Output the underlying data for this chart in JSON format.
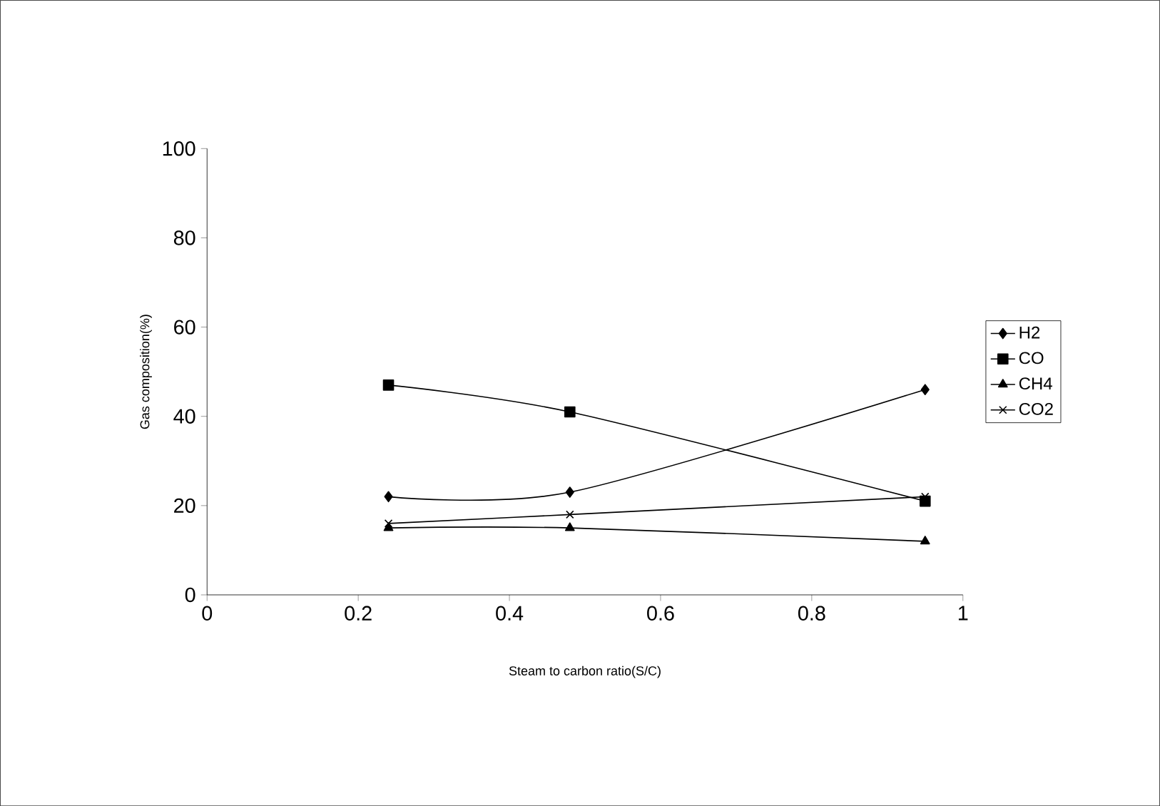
{
  "chart_data": {
    "type": "line",
    "xlabel": "Steam to carbon ratio(S/C)",
    "ylabel": "Gas composition(%)",
    "x": [
      0.24,
      0.48,
      0.95
    ],
    "series": [
      {
        "name": "H2",
        "color": "#000000",
        "marker": "diamond",
        "values": [
          22,
          23,
          46
        ]
      },
      {
        "name": "CO",
        "color": "#000000",
        "marker": "square",
        "values": [
          47,
          41,
          21
        ]
      },
      {
        "name": "CH4",
        "color": "#000000",
        "marker": "triangle",
        "values": [
          15,
          15,
          12
        ]
      },
      {
        "name": "CO2",
        "color": "#000000",
        "marker": "cross",
        "values": [
          16,
          18,
          22
        ]
      }
    ],
    "xlim": [
      0,
      1
    ],
    "xticks": [
      0,
      0.2,
      0.4,
      0.6,
      0.8,
      1
    ],
    "ylim": [
      0,
      100
    ],
    "yticks": [
      0,
      20,
      40,
      60,
      80,
      100
    ],
    "grid": false,
    "legend": "right"
  }
}
